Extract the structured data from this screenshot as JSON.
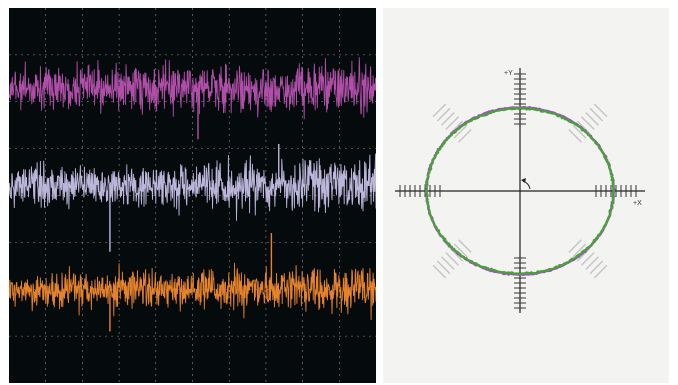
{
  "chart_data": [
    {
      "type": "line",
      "panel": "oscilloscope",
      "grid": true,
      "x_divisions": 10,
      "y_divisions": 8,
      "ylim": [
        -4,
        4
      ],
      "xlim": [
        0,
        10
      ],
      "series": [
        {
          "color": "#b04fa8",
          "offset_div": 2.3,
          "noise_pp_div": 0.9,
          "spikes": [
            [
              5.15,
              -1.1
            ]
          ]
        },
        {
          "color": "#bcb6da",
          "offset_div": 0.2,
          "noise_pp_div": 0.9,
          "spikes": [
            [
              2.75,
              -1.4
            ],
            [
              7.35,
              0.9
            ]
          ]
        },
        {
          "color": "#e5832d",
          "offset_div": -2.0,
          "noise_pp_div": 0.8,
          "spikes": [
            [
              2.75,
              -0.9
            ],
            [
              7.15,
              1.2
            ]
          ]
        }
      ]
    },
    {
      "type": "scatter",
      "panel": "xy-plot",
      "shape": "ellipse",
      "axis_labels": {
        "x": "+X",
        "y": "+Y"
      },
      "grid": false,
      "series": [
        {
          "color": "#9b58b5",
          "radius_x": 0.85,
          "radius_y": 0.76
        },
        {
          "color": "#4aa03a",
          "radius_x": 0.85,
          "radius_y": 0.75
        }
      ]
    }
  ]
}
